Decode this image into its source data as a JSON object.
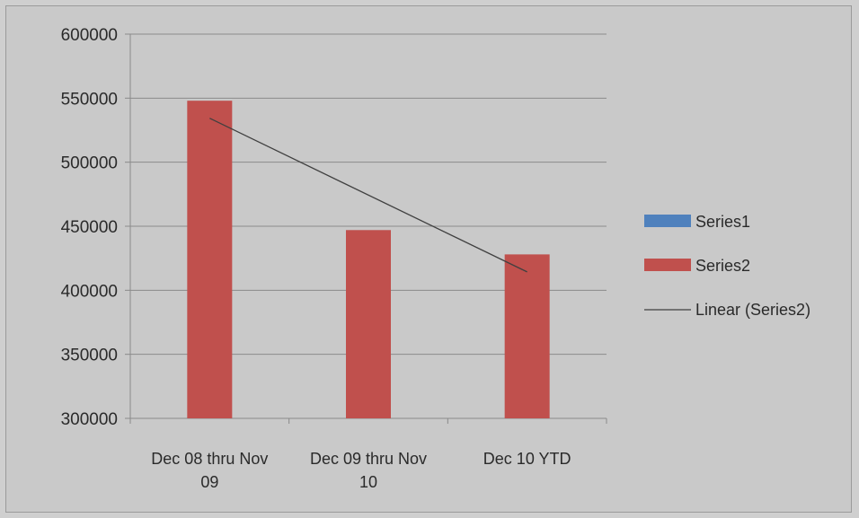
{
  "chart_data": {
    "type": "bar",
    "title": "",
    "xlabel": "",
    "ylabel": "",
    "categories": [
      [
        "Dec 08 thru Nov",
        "09"
      ],
      [
        "Dec 09 thru Nov",
        "10"
      ],
      [
        "Dec 10 YTD"
      ]
    ],
    "series": [
      {
        "name": "Series1",
        "color": "#4f81bd",
        "values": [
          null,
          null,
          null
        ]
      },
      {
        "name": "Series2",
        "color": "#c0504d",
        "values": [
          548000,
          447000,
          428000
        ]
      }
    ],
    "trendline": {
      "name": "Linear (Series2)",
      "series": "Series2",
      "type": "linear",
      "color": "#404040"
    },
    "ylim": [
      300000,
      600000
    ],
    "yticks": [
      300000,
      350000,
      400000,
      450000,
      500000,
      550000,
      600000
    ],
    "grid": true,
    "legend_position": "right"
  }
}
